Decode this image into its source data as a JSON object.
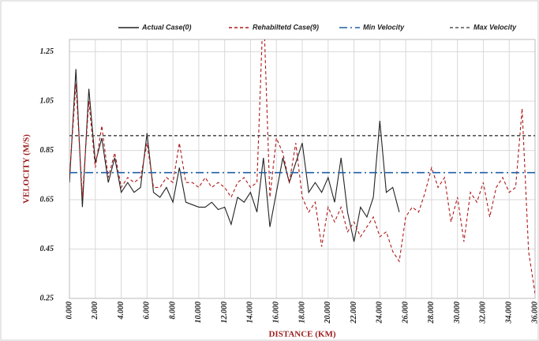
{
  "chart_data": {
    "type": "line",
    "y_label": "VELOCITY (M/S)",
    "x_label": "DISTANCE (KM)",
    "xlim": [
      0,
      36
    ],
    "ylim": [
      0.25,
      1.3
    ],
    "xticks": [
      {
        "value": 0,
        "label": "0.000"
      },
      {
        "value": 2,
        "label": "2.000"
      },
      {
        "value": 4,
        "label": "4.000"
      },
      {
        "value": 6,
        "label": "6.000"
      },
      {
        "value": 8,
        "label": "8.000"
      },
      {
        "value": 10,
        "label": "10.000"
      },
      {
        "value": 12,
        "label": "12.000"
      },
      {
        "value": 14,
        "label": "14.000"
      },
      {
        "value": 16,
        "label": "16.000"
      },
      {
        "value": 18,
        "label": "18.000"
      },
      {
        "value": 20,
        "label": "20.000"
      },
      {
        "value": 22,
        "label": "22.000"
      },
      {
        "value": 24,
        "label": "24.000"
      },
      {
        "value": 26,
        "label": "26.000"
      },
      {
        "value": 28,
        "label": "28.000"
      },
      {
        "value": 30,
        "label": "30.000"
      },
      {
        "value": 32,
        "label": "32.000"
      },
      {
        "value": 34,
        "label": "34.000"
      },
      {
        "value": 36,
        "label": "36.000"
      }
    ],
    "yticks": [
      0.25,
      0.45,
      0.65,
      0.85,
      1.05,
      1.25
    ],
    "grid": true,
    "series": [
      {
        "name": "Actual Case(0)",
        "color": "#222222",
        "dash": "solid",
        "x": [
          0,
          0.5,
          1,
          1.5,
          2,
          2.5,
          3,
          3.5,
          4,
          4.5,
          5,
          5.5,
          6,
          6.5,
          7,
          7.5,
          8,
          8.5,
          9,
          9.5,
          10,
          10.5,
          11,
          11.5,
          12,
          12.5,
          13,
          13.5,
          14,
          14.5,
          15,
          15.5,
          16,
          16.5,
          17,
          17.5,
          18,
          18.5,
          19,
          19.5,
          20,
          20.5,
          21,
          21.5,
          22,
          22.5,
          23,
          23.5,
          24,
          24.5,
          25,
          25.5
        ],
        "values": [
          0.72,
          1.18,
          0.62,
          1.1,
          0.8,
          0.9,
          0.72,
          0.82,
          0.68,
          0.72,
          0.68,
          0.7,
          0.92,
          0.68,
          0.66,
          0.7,
          0.64,
          0.78,
          0.64,
          0.63,
          0.62,
          0.62,
          0.64,
          0.61,
          0.62,
          0.55,
          0.66,
          0.64,
          0.68,
          0.6,
          0.82,
          0.54,
          0.68,
          0.82,
          0.72,
          0.8,
          0.88,
          0.68,
          0.72,
          0.68,
          0.74,
          0.64,
          0.82,
          0.6,
          0.48,
          0.62,
          0.58,
          0.66,
          0.97,
          0.68,
          0.7,
          0.6
        ]
      },
      {
        "name": "Rehabiltetd Case(9)",
        "color": "#b01818",
        "dash": "dashed",
        "x": [
          0,
          0.5,
          1,
          1.5,
          2,
          2.5,
          3,
          3.5,
          4,
          4.5,
          5,
          5.5,
          6,
          6.5,
          7,
          7.5,
          8,
          8.5,
          9,
          9.5,
          10,
          10.5,
          11,
          11.5,
          12,
          12.5,
          13,
          13.5,
          14,
          14.5,
          15,
          15.5,
          16,
          16.5,
          17,
          17.5,
          18,
          18.5,
          19,
          19.5,
          20,
          20.5,
          21,
          21.5,
          22,
          22.5,
          23,
          23.5,
          24,
          24.5,
          25,
          25.5,
          26,
          26.5,
          27,
          27.5,
          28,
          28.5,
          29,
          29.5,
          30,
          30.5,
          31,
          31.5,
          32,
          32.5,
          33,
          33.5,
          34,
          34.5,
          35,
          35.5,
          36
        ],
        "values": [
          0.74,
          1.12,
          0.66,
          1.05,
          0.78,
          0.95,
          0.74,
          0.84,
          0.7,
          0.74,
          0.72,
          0.74,
          0.88,
          0.7,
          0.7,
          0.74,
          0.72,
          0.88,
          0.72,
          0.72,
          0.7,
          0.74,
          0.7,
          0.72,
          0.7,
          0.66,
          0.72,
          0.74,
          0.7,
          0.72,
          1.45,
          0.66,
          0.9,
          0.84,
          0.72,
          0.88,
          0.66,
          0.6,
          0.64,
          0.46,
          0.62,
          0.56,
          0.62,
          0.52,
          0.56,
          0.5,
          0.54,
          0.58,
          0.5,
          0.52,
          0.44,
          0.4,
          0.58,
          0.62,
          0.6,
          0.68,
          0.78,
          0.7,
          0.74,
          0.56,
          0.66,
          0.48,
          0.68,
          0.64,
          0.72,
          0.58,
          0.7,
          0.74,
          0.68,
          0.7,
          1.02,
          0.44,
          0.27
        ]
      },
      {
        "name": "Min Velocity",
        "color": "#1f5fa8",
        "dash": "dashdot",
        "x": [
          0,
          36
        ],
        "values": [
          0.76,
          0.76
        ]
      },
      {
        "name": "Max Velocity",
        "color": "#555555",
        "dash": "dashed",
        "x": [
          0,
          36
        ],
        "values": [
          0.91,
          0.91
        ]
      }
    ]
  }
}
